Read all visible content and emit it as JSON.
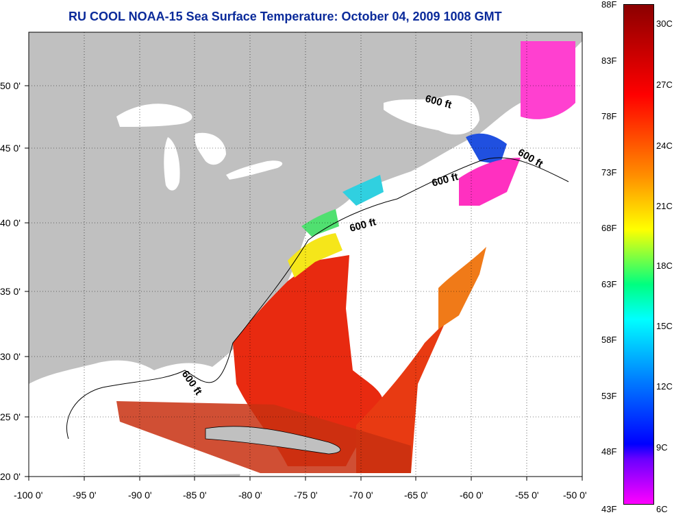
{
  "title": "RU COOL  NOAA-15  Sea Surface Temperature:  October 04, 2009 1008 GMT",
  "axes": {
    "lon_ticks": [
      "-100 0'",
      "-95 0'",
      "-90 0'",
      "-85 0'",
      "-80 0'",
      "-75 0'",
      "-70 0'",
      "-65 0'",
      "-60 0'",
      "-55 0'",
      "-50 0'"
    ],
    "lat_ticks": [
      "50 0'",
      "45 0'",
      "40 0'",
      "35 0'",
      "30 0'",
      "25 0'",
      "20 0'"
    ]
  },
  "isobath_labels": [
    "600 ft",
    "600 ft",
    "600 ft",
    "600 ft",
    "600 ft"
  ],
  "colorbar": {
    "fahrenheit": [
      "88F",
      "83F",
      "78F",
      "73F",
      "68F",
      "63F",
      "58F",
      "53F",
      "48F",
      "43F"
    ],
    "celsius": [
      "30C",
      "27C",
      "24C",
      "21C",
      "18C",
      "15C",
      "12C",
      "9C",
      "6C"
    ],
    "colors": [
      "#8b0000",
      "#ff0000",
      "#ff8c00",
      "#ffff00",
      "#00ff80",
      "#00ffff",
      "#0080ff",
      "#0000ff",
      "#ff00ff"
    ]
  },
  "colors": {
    "land": "#c0c0c0",
    "cloud_or_ocean_no_data": "#ffffff",
    "title": "#0a2a9a"
  }
}
